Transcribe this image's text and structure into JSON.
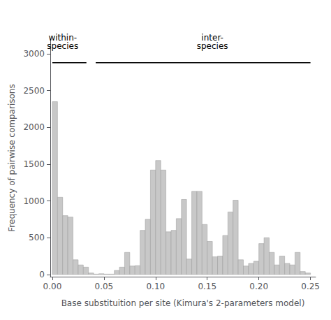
{
  "chart_data": {
    "type": "histogram",
    "xlabel": "Base substituition per site (Kimura's 2-parameters model)",
    "ylabel": "Frequency of pairwise comparisons",
    "bins": [
      0.0,
      0.005,
      0.01,
      0.015,
      0.02,
      0.025,
      0.03,
      0.035,
      0.04,
      0.045,
      0.05,
      0.055,
      0.06,
      0.065,
      0.07,
      0.075,
      0.08,
      0.085,
      0.09,
      0.095,
      0.1,
      0.105,
      0.11,
      0.115,
      0.12,
      0.125,
      0.13,
      0.135,
      0.14,
      0.145,
      0.15,
      0.155,
      0.16,
      0.165,
      0.17,
      0.175,
      0.18,
      0.185,
      0.19,
      0.195,
      0.2,
      0.205,
      0.21,
      0.215,
      0.22,
      0.225,
      0.23,
      0.235,
      0.24,
      0.245,
      0.25
    ],
    "values": [
      2350,
      1050,
      800,
      780,
      200,
      130,
      100,
      20,
      5,
      10,
      5,
      5,
      55,
      100,
      300,
      115,
      120,
      600,
      750,
      1420,
      1550,
      1420,
      580,
      600,
      760,
      1020,
      210,
      1130,
      1130,
      680,
      450,
      240,
      250,
      530,
      850,
      1010,
      200,
      115,
      150,
      180,
      420,
      500,
      300,
      130,
      250,
      150,
      130,
      300,
      40,
      20
    ],
    "color": "#c8c8c8",
    "xlim": [
      -0.002,
      0.255
    ],
    "xticks": [
      {
        "value": 0.0,
        "label": "0.00"
      },
      0.05,
      {
        "value": 0.1,
        "label": "0.10"
      },
      0.15,
      {
        "value": 0.2,
        "label": "0.20"
      },
      0.25
    ],
    "ylim": [
      -30,
      3200
    ],
    "yticks": [
      0,
      500,
      1000,
      1500,
      2000,
      2500,
      3000
    ],
    "grid": false,
    "annotations": [
      {
        "text": "within-\nspecies",
        "x": 0.01,
        "y": 3050,
        "line_x": [
          0.0,
          0.033
        ],
        "line_y": 2880
      },
      {
        "text": "inter-\nspecies",
        "x": 0.155,
        "y": 3050,
        "line_x": [
          0.042,
          0.25
        ],
        "line_y": 2880
      }
    ]
  }
}
